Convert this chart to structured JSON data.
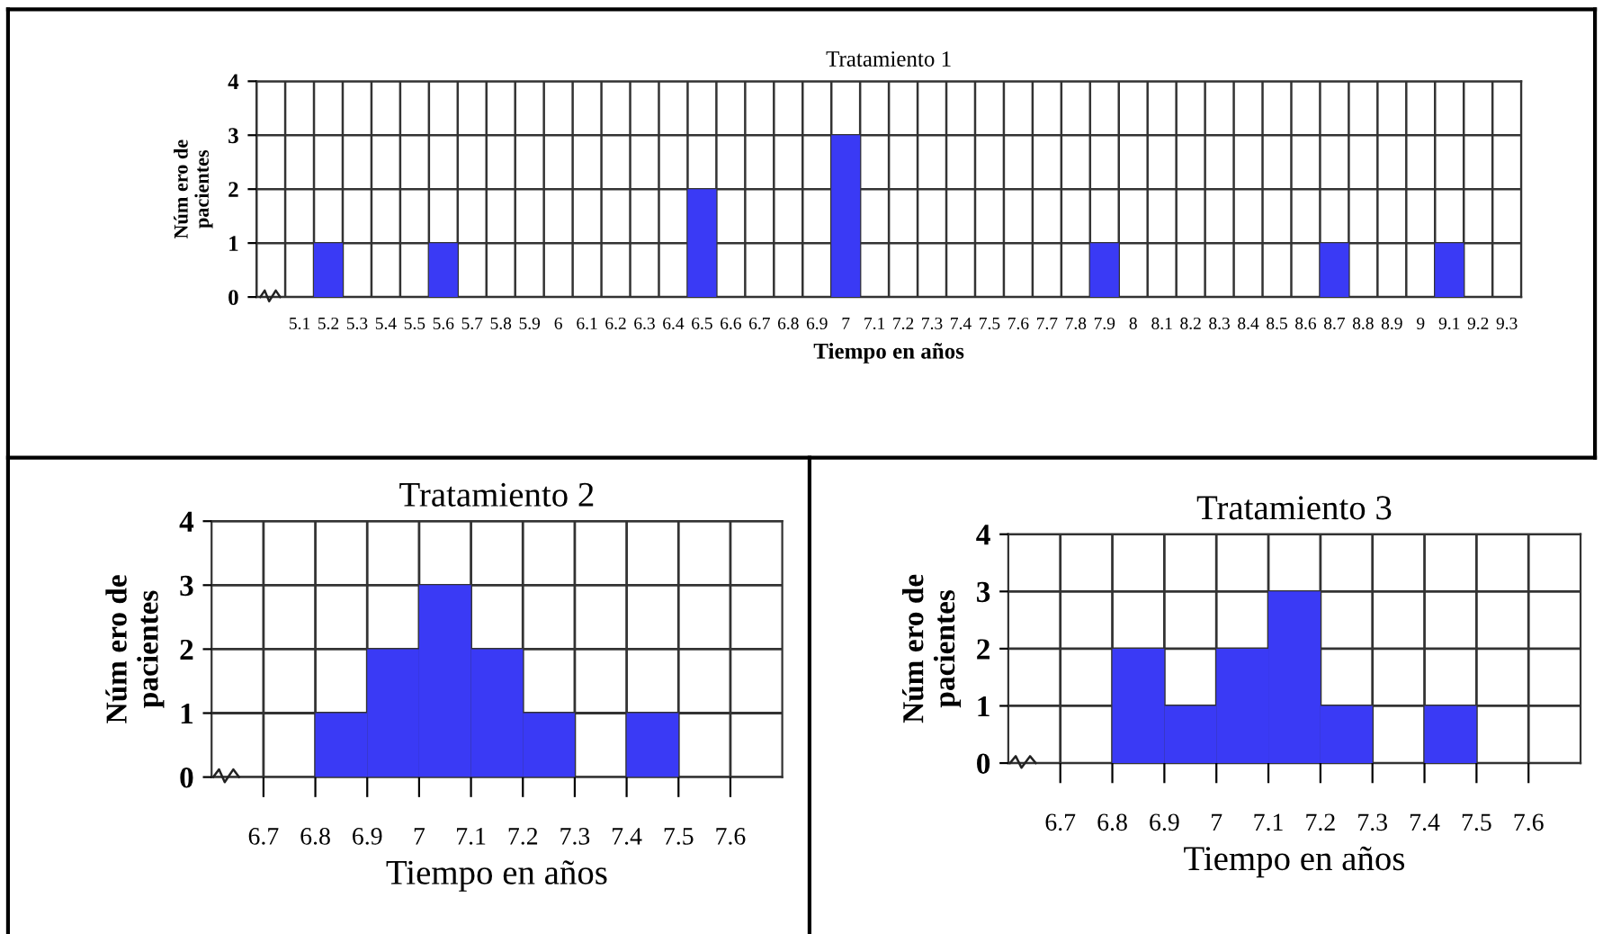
{
  "chart_data": [
    {
      "type": "bar",
      "title": "Tratamiento 1",
      "xlabel": "Tiempo en años",
      "ylabel": "Núm ero de\npacientes",
      "categories": [
        null,
        "5.1",
        "5.2",
        "5.3",
        "5.4",
        "5.5",
        "5.6",
        "5.7",
        "5.8",
        "5.9",
        "6",
        "6.1",
        "6.2",
        "6.3",
        "6.4",
        "6.5",
        "6.6",
        "6.7",
        "6.8",
        "6.9",
        "7",
        "7.1",
        "7.2",
        "7.3",
        "7.4",
        "7.5",
        "7.6",
        "7.7",
        "7.8",
        "7.9",
        "8",
        "8.1",
        "8.2",
        "8.3",
        "8.4",
        "8.5",
        "8.6",
        "8.7",
        "8.8",
        "8.9",
        "9",
        "9.1",
        "9.2",
        "9.3"
      ],
      "values": [
        0,
        0,
        1,
        0,
        0,
        0,
        1,
        0,
        0,
        0,
        0,
        0,
        0,
        0,
        0,
        2,
        0,
        0,
        0,
        0,
        3,
        0,
        0,
        0,
        0,
        0,
        0,
        0,
        0,
        1,
        0,
        0,
        0,
        0,
        0,
        0,
        0,
        1,
        0,
        0,
        0,
        1,
        0,
        0
      ],
      "color": "#3a3af5",
      "ylim": [
        0,
        4
      ],
      "yticks": [
        0,
        1,
        2,
        3,
        4
      ],
      "grid": true
    },
    {
      "type": "histogram",
      "title": "Tratamiento 2",
      "xlabel": "Tiempo en años",
      "ylabel": "Núm ero de\npacientes",
      "bins": [
        6.8,
        6.9,
        7,
        7.1,
        7.2,
        7.3,
        7.4,
        7.5
      ],
      "values": [
        1,
        2,
        3,
        2,
        1,
        0,
        1
      ],
      "color": "#3a3af5",
      "xlim": [
        6.6,
        7.7
      ],
      "xticks": [
        6.7,
        6.8,
        6.9,
        7,
        7.1,
        7.2,
        7.3,
        7.4,
        7.5,
        7.6
      ],
      "ylim": [
        0,
        4
      ],
      "yticks": [
        0,
        1,
        2,
        3,
        4
      ],
      "grid": true
    },
    {
      "type": "histogram",
      "title": "Tratamiento 3",
      "xlabel": "Tiempo en años",
      "ylabel": "Núm ero de\npacientes",
      "bins": [
        6.8,
        6.9,
        7,
        7.1,
        7.2,
        7.3,
        7.4,
        7.5
      ],
      "values": [
        2,
        1,
        2,
        3,
        1,
        0,
        1
      ],
      "color": "#3a3af5",
      "xlim": [
        6.6,
        7.7
      ],
      "xticks": [
        6.7,
        6.8,
        6.9,
        7,
        7.1,
        7.2,
        7.3,
        7.4,
        7.5,
        7.6
      ],
      "ylim": [
        0,
        4
      ],
      "yticks": [
        0,
        1,
        2,
        3,
        4
      ],
      "grid": true
    }
  ]
}
